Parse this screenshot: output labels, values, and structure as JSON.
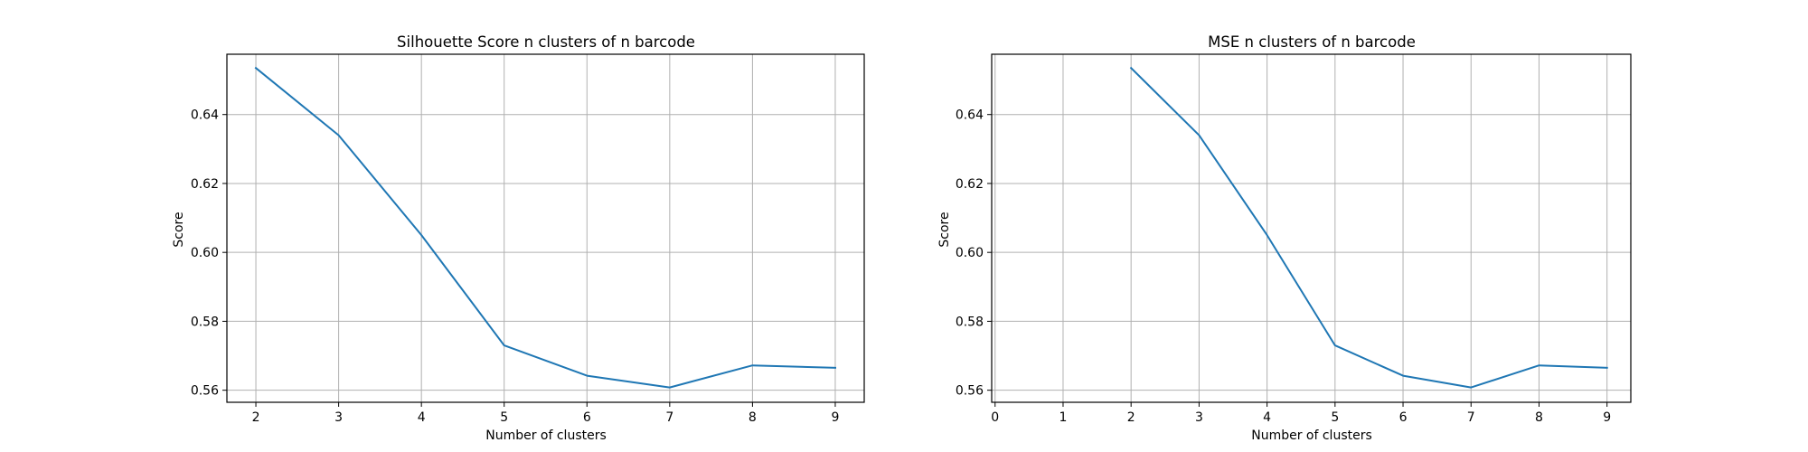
{
  "chart_data": [
    {
      "type": "line",
      "title": "Silhouette Score n clusters of n barcode",
      "xlabel": "Number of clusters",
      "ylabel": "Score",
      "xlim": [
        1.65,
        9.35
      ],
      "ylim": [
        0.5565,
        0.6575
      ],
      "xticks": [
        2,
        3,
        4,
        5,
        6,
        7,
        8,
        9
      ],
      "yticks": [
        0.56,
        0.58,
        0.6,
        0.62,
        0.64
      ],
      "ytick_labels": [
        "0.56",
        "0.58",
        "0.60",
        "0.62",
        "0.64"
      ],
      "grid": true,
      "x": [
        2,
        3,
        4,
        5,
        6,
        7,
        8,
        9
      ],
      "series": [
        {
          "values": [
            0.6535,
            0.634,
            0.605,
            0.573,
            0.5642,
            0.5608,
            0.5672,
            0.5665
          ],
          "color": "#1f77b4"
        }
      ]
    },
    {
      "type": "line",
      "title": "MSE n clusters of n barcode",
      "xlabel": "Number of clusters",
      "ylabel": "Score",
      "xlim": [
        -0.05,
        9.35
      ],
      "ylim": [
        0.5565,
        0.6575
      ],
      "xticks": [
        0,
        1,
        2,
        3,
        4,
        5,
        6,
        7,
        8,
        9
      ],
      "yticks": [
        0.56,
        0.58,
        0.6,
        0.62,
        0.64
      ],
      "ytick_labels": [
        "0.56",
        "0.58",
        "0.60",
        "0.62",
        "0.64"
      ],
      "grid": true,
      "x": [
        2,
        3,
        4,
        5,
        6,
        7,
        8,
        9
      ],
      "series": [
        {
          "values": [
            0.6535,
            0.634,
            0.605,
            0.573,
            0.5642,
            0.5608,
            0.5672,
            0.5665
          ],
          "color": "#1f77b4"
        }
      ]
    }
  ]
}
